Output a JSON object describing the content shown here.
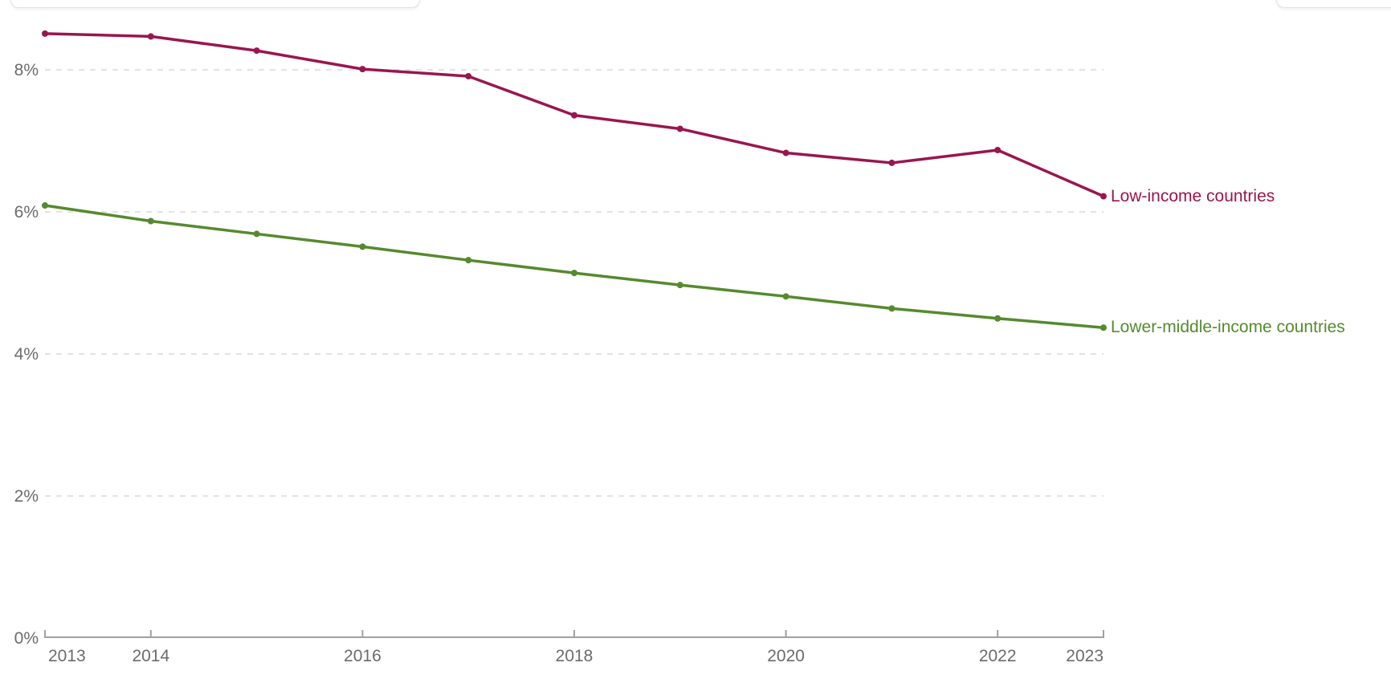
{
  "chart_data": {
    "type": "line",
    "title": "",
    "xlabel": "",
    "ylabel": "",
    "x": [
      2013,
      2014,
      2015,
      2016,
      2017,
      2018,
      2019,
      2020,
      2021,
      2022,
      2023
    ],
    "series": [
      {
        "name": "Low-income countries",
        "color": "#99164f",
        "values": [
          8.51,
          8.47,
          8.27,
          8.01,
          7.91,
          7.36,
          7.17,
          6.83,
          6.69,
          6.87,
          6.22
        ]
      },
      {
        "name": "Lower-middle-income countries",
        "color": "#568a2e",
        "values": [
          6.09,
          5.87,
          5.69,
          5.51,
          5.32,
          5.14,
          4.97,
          4.81,
          4.64,
          4.5,
          4.37
        ]
      }
    ],
    "xlim": [
      2013,
      2023
    ],
    "ylim": [
      0,
      9
    ],
    "x_ticks": {
      "years": [
        2013,
        2014,
        2016,
        2018,
        2020,
        2022,
        2023
      ],
      "labels": [
        "2013",
        "2014",
        "2016",
        "2018",
        "2020",
        "2022",
        "2023"
      ]
    },
    "y_ticks": {
      "values": [
        0,
        2,
        4,
        6,
        8
      ],
      "labels": [
        "0%",
        "2%",
        "4%",
        "6%",
        "8%"
      ]
    },
    "grid": "horizontal-dashed",
    "legend_position": "end-of-line-labels"
  },
  "styles": {
    "grid_color": "#dadada",
    "axis_color": "#a1a1a1",
    "tick_label_color": "#6b6b6b"
  }
}
